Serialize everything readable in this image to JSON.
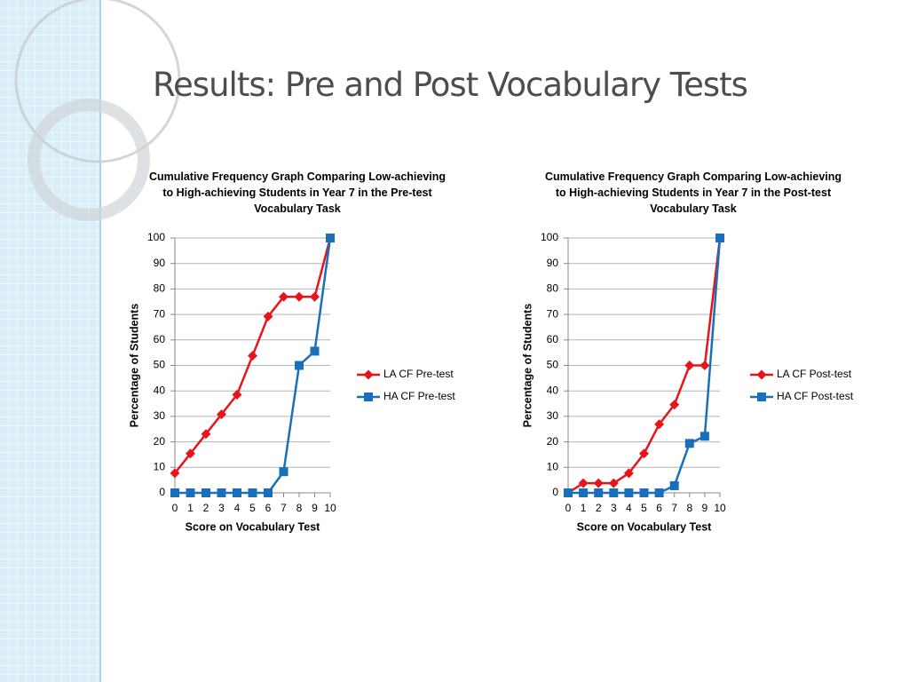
{
  "slide": {
    "title": "Results: Pre and Post Vocabulary Tests"
  },
  "chart_data": [
    {
      "type": "line",
      "title": "Cumulative Frequency Graph Comparing Low-achieving to High-achieving Students in Year 7 in the Pre-test Vocabulary Task",
      "x_label": "Score on Vocabulary Test",
      "y_label": "Percentage of Students",
      "x": [
        0,
        1,
        2,
        3,
        4,
        5,
        6,
        7,
        8,
        9,
        10
      ],
      "xlim": [
        0,
        10
      ],
      "xticks": [
        0,
        1,
        2,
        3,
        4,
        5,
        6,
        7,
        8,
        9,
        10
      ],
      "ylim": [
        0,
        100
      ],
      "yticks": [
        0,
        10,
        20,
        30,
        40,
        50,
        60,
        70,
        80,
        90,
        100
      ],
      "grid": true,
      "legend": "right",
      "series": [
        {
          "name": "LA CF Pre-test",
          "color": "#e8141c",
          "marker": "diamond",
          "values": [
            7.7,
            15.4,
            23.1,
            30.8,
            38.5,
            53.8,
            69.2,
            76.9,
            76.9,
            76.9,
            100
          ]
        },
        {
          "name": "HA CF Pre-test",
          "color": "#1a6fba",
          "marker": "square",
          "values": [
            0,
            0,
            0,
            0,
            0,
            0,
            0,
            8.3,
            50,
            55.6,
            100
          ]
        }
      ]
    },
    {
      "type": "line",
      "title": "Cumulative Frequency Graph Comparing Low-achieving to High-achieving Students in Year 7 in the Post-test Vocabulary Task",
      "x_label": "Score on Vocabulary Test",
      "y_label": "Percentage of Students",
      "x": [
        0,
        1,
        2,
        3,
        4,
        5,
        6,
        7,
        8,
        9,
        10
      ],
      "xlim": [
        0,
        10
      ],
      "xticks": [
        0,
        1,
        2,
        3,
        4,
        5,
        6,
        7,
        8,
        9,
        10
      ],
      "ylim": [
        0,
        100
      ],
      "yticks": [
        0,
        10,
        20,
        30,
        40,
        50,
        60,
        70,
        80,
        90,
        100
      ],
      "grid": true,
      "legend": "right",
      "series": [
        {
          "name": "LA CF Post-test",
          "color": "#e8141c",
          "marker": "diamond",
          "values": [
            0,
            3.8,
            3.8,
            3.8,
            7.7,
            15.4,
            26.9,
            34.6,
            50,
            50,
            100
          ]
        },
        {
          "name": "HA CF Post-test",
          "color": "#1a6fba",
          "marker": "square",
          "values": [
            0,
            0,
            0,
            0,
            0,
            0,
            0,
            2.8,
            19.4,
            22.2,
            100
          ]
        }
      ]
    }
  ]
}
